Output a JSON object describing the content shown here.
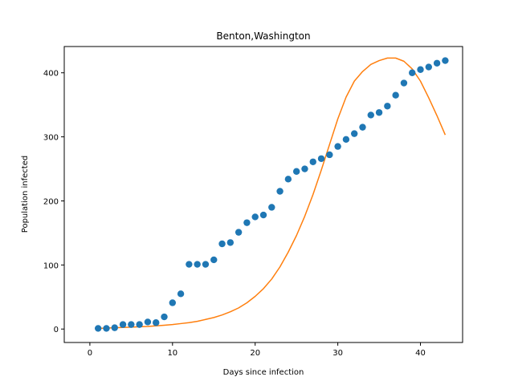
{
  "chart_data": {
    "type": "scatter",
    "title": "Benton,Washington",
    "xlabel": "Days since infection",
    "ylabel": "Population infected",
    "xlim": [
      -3.1,
      45.1
    ],
    "ylim": [
      -21,
      441
    ],
    "xticks": [
      0,
      10,
      20,
      30,
      40
    ],
    "yticks": [
      0,
      100,
      200,
      300,
      400
    ],
    "grid": false,
    "series": [
      {
        "kind": "scatter",
        "color": "#1f77b4",
        "x": [
          1,
          2,
          3,
          4,
          5,
          6,
          7,
          8,
          9,
          10,
          11,
          12,
          13,
          14,
          15,
          16,
          17,
          18,
          19,
          20,
          21,
          22,
          23,
          24,
          25,
          26,
          27,
          28,
          29,
          30,
          31,
          32,
          33,
          34,
          35,
          36,
          37,
          38,
          39,
          40,
          41,
          42,
          43
        ],
        "y": [
          1,
          1,
          2,
          7,
          7,
          7,
          11,
          10,
          19,
          41,
          55,
          101,
          101,
          101,
          108,
          133,
          135,
          151,
          166,
          175,
          178,
          190,
          215,
          234,
          246,
          250,
          261,
          266,
          272,
          285,
          296,
          305,
          315,
          334,
          338,
          348,
          365,
          384,
          400,
          405,
          409,
          415,
          419
        ]
      },
      {
        "kind": "line",
        "color": "#ff7f0e",
        "x": [
          1,
          2,
          3,
          4,
          5,
          6,
          7,
          8,
          9,
          10,
          11,
          12,
          13,
          14,
          15,
          16,
          17,
          18,
          19,
          20,
          21,
          22,
          23,
          24,
          25,
          26,
          27,
          28,
          29,
          30,
          31,
          32,
          33,
          34,
          35,
          36,
          37,
          38,
          39,
          40,
          41,
          42,
          43
        ],
        "y": [
          1,
          1.5,
          2,
          2.5,
          3,
          3.5,
          4,
          5,
          6,
          7,
          8.5,
          10,
          12,
          15,
          18,
          22,
          27,
          33,
          41,
          51,
          63,
          78,
          97,
          120,
          146,
          176,
          210,
          248,
          288,
          328,
          362,
          387,
          402,
          413,
          419,
          423,
          423,
          418,
          406,
          387,
          361,
          333,
          303
        ]
      }
    ]
  }
}
